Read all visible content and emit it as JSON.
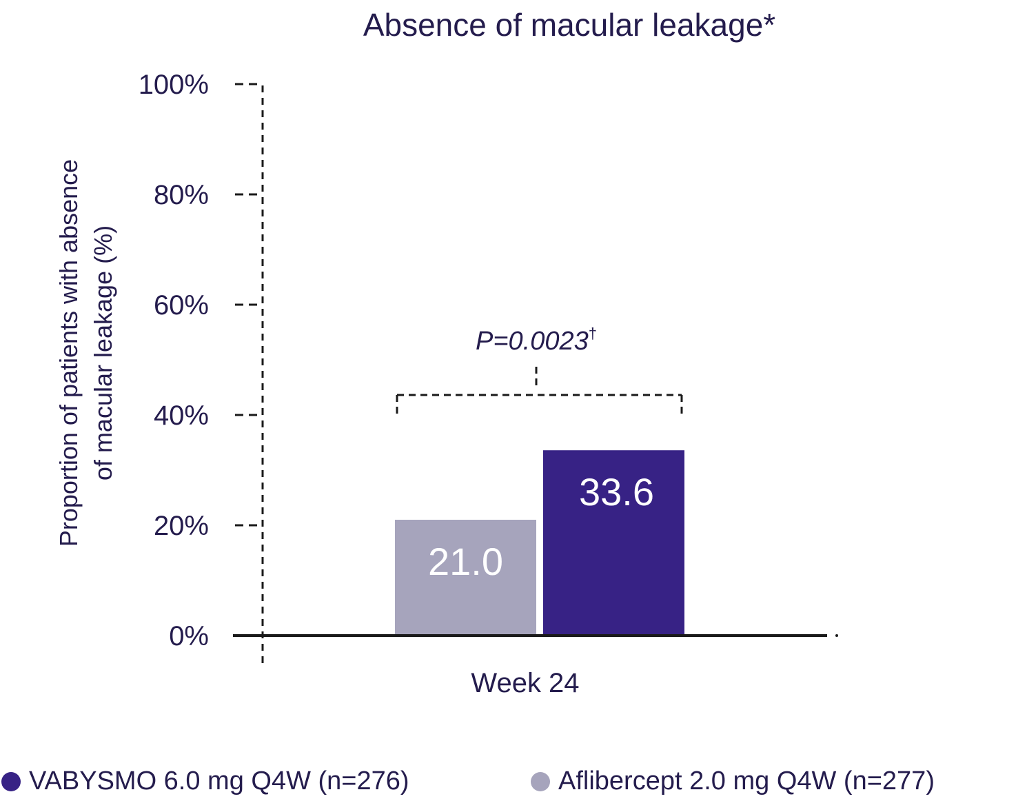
{
  "chart_data": {
    "type": "bar",
    "title": "Absence of macular leakage*",
    "ylabel_lines": [
      "Proportion of patients with absence",
      "of macular leakage (%)"
    ],
    "categories": [
      "Week 24"
    ],
    "ylim": [
      0,
      100
    ],
    "yticks": [
      0,
      20,
      40,
      60,
      80,
      100
    ],
    "ytick_labels": [
      "0%",
      "20%",
      "40%",
      "60%",
      "80%",
      "100%"
    ],
    "grid": false,
    "series": [
      {
        "name": "Aflibercept 2.0 mg Q4W (n=277)",
        "values": [
          21.0
        ],
        "label": "21.0",
        "color": "#a6a4bc"
      },
      {
        "name": "VABYSMO 6.0 mg Q4W (n=276)",
        "values": [
          33.6
        ],
        "label": "33.6",
        "color": "#372285"
      }
    ],
    "annotation": {
      "text": "P=0.0023",
      "sup": "†"
    }
  },
  "legend": [
    {
      "label": "VABYSMO 6.0 mg Q4W (n=276)",
      "color": "#372285"
    },
    {
      "label": "Aflibercept 2.0 mg Q4W (n=277)",
      "color": "#a6a4bc"
    }
  ]
}
